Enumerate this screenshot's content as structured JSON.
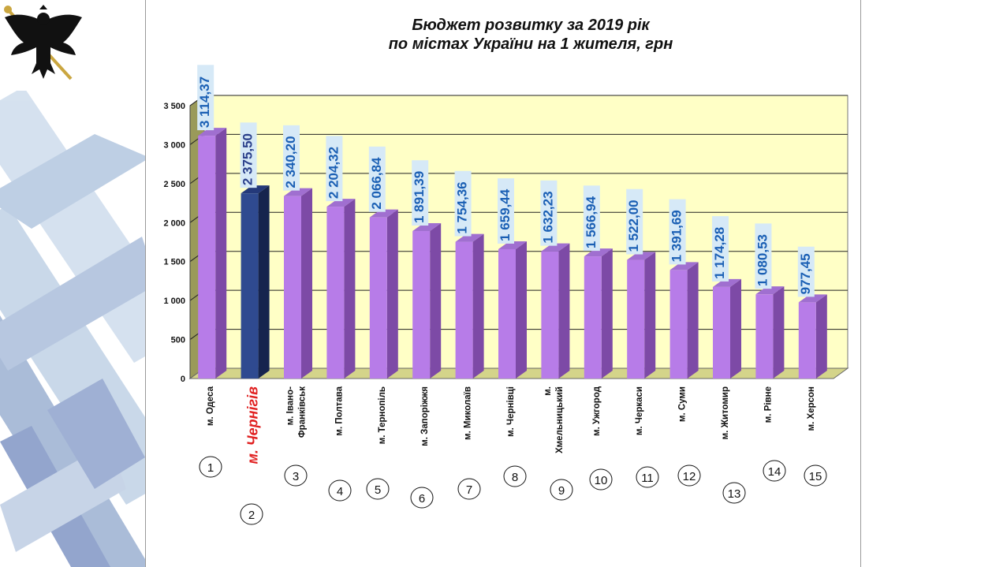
{
  "chart_data": {
    "type": "bar",
    "title": [
      "Бюджет розвитку за 2019 рік",
      "по містах України на 1 жителя, грн"
    ],
    "categories": [
      [
        "м. Одеса"
      ],
      [
        "м. Чернігів"
      ],
      [
        "м. Івано-",
        "Франківськ"
      ],
      [
        "м. Полтава"
      ],
      [
        "м. Тернопіль"
      ],
      [
        "м. Запоріжжя"
      ],
      [
        "м. Миколаїв"
      ],
      [
        "м. Чернівці"
      ],
      [
        "м.",
        "Хмельницький"
      ],
      [
        "м. Ужгород"
      ],
      [
        "м. Черкаси"
      ],
      [
        "м. Суми"
      ],
      [
        "м. Житомир"
      ],
      [
        "м. Рівне"
      ],
      [
        "м. Херсон"
      ]
    ],
    "values": [
      3114.37,
      2375.5,
      2340.2,
      2204.32,
      2066.84,
      1891.39,
      1754.36,
      1659.44,
      1632.23,
      1566.94,
      1522.0,
      1391.69,
      1174.28,
      1080.53,
      977.45
    ],
    "value_labels": [
      "3 114,37",
      "2 375,50",
      "2 340,20",
      "2 204,32",
      "2 066,84",
      "1 891,39",
      "1 754,36",
      "1 659,44",
      "1 632,23",
      "1 566,94",
      "1 522,00",
      "1 391,69",
      "1 174,28",
      "1 080,53",
      "977,45"
    ],
    "ranks": [
      "1",
      "2",
      "3",
      "4",
      "5",
      "6",
      "7",
      "8",
      "9",
      "10",
      "11",
      "12",
      "13",
      "14",
      "15"
    ],
    "highlight_index": 1,
    "ylim": [
      0,
      3500
    ],
    "yticks": [
      0,
      500,
      1000,
      1500,
      2000,
      2500,
      3000,
      3500
    ],
    "ytick_labels": [
      "0",
      "500",
      "1 000",
      "1 500",
      "2 000",
      "2 500",
      "3 000",
      "3 500"
    ],
    "grid": true,
    "colors": {
      "bar": "#b77ce8",
      "bar_side": "#7d4aa6",
      "bar_top": "#a06fd0",
      "highlight_bar": "#2f4a90",
      "highlight_side": "#16244e",
      "highlight_top": "#24397a",
      "highlight_label": "#e02020",
      "value_label": "#1a5fb4",
      "value_label_bg": "#d6e9f7",
      "plot_bg": "#ffffc6",
      "floor": "#d4d48a",
      "side_wall": "#9a9a5a"
    }
  },
  "crest": {
    "icon": "chernihiv-coat-of-arms-eagle-icon"
  }
}
